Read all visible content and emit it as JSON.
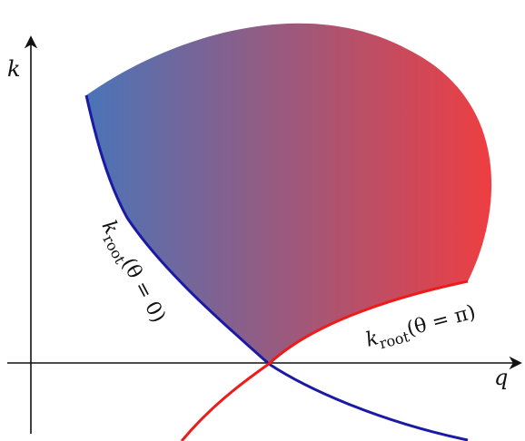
{
  "axes": {
    "vertical_label": "k",
    "horizontal_label": "q"
  },
  "curves": {
    "theta_zero": {
      "symbol": "k",
      "subscript": "root",
      "argument": "(θ = 0)",
      "color": "#1a1aa6"
    },
    "theta_pi": {
      "symbol": "k",
      "subscript": "root",
      "argument": "(θ = π)",
      "color": "#ee1b1b"
    }
  },
  "region": {
    "gradient_start": "#4a74b8",
    "gradient_end": "#ee3e42"
  }
}
